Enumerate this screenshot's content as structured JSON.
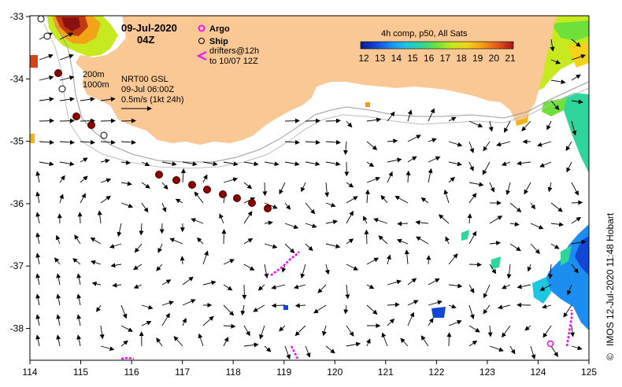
{
  "map": {
    "date_title": "09-Jul-2020",
    "time_title": "04Z",
    "composite_label": "4h comp, p50, All Sats",
    "colorbar_ticks": [
      "12",
      "13",
      "14",
      "15",
      "16",
      "17",
      "18",
      "19",
      "20",
      "21"
    ],
    "colorbar_colors": [
      "#0b1a8c",
      "#1446d6",
      "#1c8ef0",
      "#1fc6e0",
      "#2fd59a",
      "#6fe03a",
      "#c6ea1f",
      "#f2d21a",
      "#f59b16",
      "#e4541a",
      "#a81515"
    ],
    "legend": {
      "argo_label": "Argo",
      "ship_label": "Ship",
      "drifters_label": "drifters@12h",
      "drifters_range": "to 10/07 12Z",
      "contour_200": "200m",
      "contour_1000": "1000m",
      "product": "NRT00 GSL",
      "product_time": "09-Jul 06:00Z",
      "scale_label": "0.5m/s (1kt 24h)"
    },
    "x_ticks": [
      "114",
      "115",
      "116",
      "117",
      "118",
      "119",
      "120",
      "121",
      "122",
      "123",
      "124",
      "125"
    ],
    "y_ticks": [
      "-33",
      "-34",
      "-35",
      "-36",
      "-37",
      "-38"
    ],
    "credit": "IMOS 12-Jul-2020 11:48 Hobart",
    "copyright_symbol": "©",
    "land_color": "#f9c895",
    "argo_color": "#ff00ff",
    "ship_color": "#8b0000"
  }
}
